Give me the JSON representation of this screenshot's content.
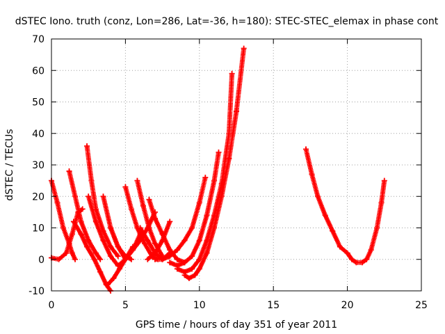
{
  "chart_data": {
    "type": "scatter",
    "title": "dSTEC Iono. truth (conz, Lon=286, Lat=-36, h=180): STEC-STEC_elemax in phase cont",
    "xlabel": "GPS time / hours of day 351 of year 2011",
    "ylabel": "dSTEC  / TECUs",
    "xlim": [
      0,
      25
    ],
    "ylim": [
      -10,
      70
    ],
    "x_ticks": [
      "0",
      "5",
      "10",
      "15",
      "20",
      "25"
    ],
    "y_ticks": [
      "-10",
      "0",
      "10",
      "20",
      "30",
      "40",
      "50",
      "60",
      "70"
    ],
    "grid": true,
    "marker": "+",
    "color": "#ff0000",
    "series": [
      {
        "x": [
          0.0,
          0.4,
          0.8,
          1.2,
          1.4,
          1.6
        ],
        "y": [
          25,
          18,
          10,
          5,
          2,
          0
        ]
      },
      {
        "x": [
          0.0,
          0.5,
          1.0,
          1.4,
          1.8,
          2.1
        ],
        "y": [
          0.5,
          0,
          2,
          8,
          15,
          16
        ]
      },
      {
        "x": [
          1.2,
          1.6,
          2.0,
          2.5,
          3.0,
          3.3
        ],
        "y": [
          28,
          20,
          12,
          6,
          2,
          0
        ]
      },
      {
        "x": [
          1.5,
          2.0,
          2.4,
          2.9,
          3.3,
          3.7,
          4.0
        ],
        "y": [
          12,
          8,
          4,
          0,
          -4,
          -8,
          -10
        ]
      },
      {
        "x": [
          2.4,
          2.7,
          3.0,
          3.5,
          4.0,
          4.5
        ],
        "y": [
          36,
          25,
          16,
          9,
          4,
          1
        ]
      },
      {
        "x": [
          2.5,
          3.0,
          3.5,
          4.0,
          4.5,
          5.0,
          5.5
        ],
        "y": [
          20,
          12,
          6,
          1,
          -2,
          0,
          4
        ]
      },
      {
        "x": [
          3.5,
          4.0,
          4.5,
          5.0,
          5.4
        ],
        "y": [
          20,
          10,
          4,
          1,
          0
        ]
      },
      {
        "x": [
          3.8,
          4.2,
          4.6,
          5.0
        ],
        "y": [
          -8,
          -6,
          -3,
          0
        ]
      },
      {
        "x": [
          4.0,
          4.5,
          5.0,
          5.5,
          6.0
        ],
        "y": [
          10,
          4,
          0,
          3,
          8
        ]
      },
      {
        "x": [
          5.0,
          5.4,
          5.8,
          6.3,
          6.8,
          7.2
        ],
        "y": [
          23,
          16,
          10,
          5,
          1,
          0
        ]
      },
      {
        "x": [
          5.0,
          5.5,
          6.0,
          6.5,
          7.0
        ],
        "y": [
          0,
          3,
          6,
          10,
          15
        ]
      },
      {
        "x": [
          5.8,
          6.2,
          6.6,
          7.0,
          7.5
        ],
        "y": [
          25,
          17,
          10,
          5,
          1
        ]
      },
      {
        "x": [
          6.0,
          6.5,
          7.0,
          7.5,
          8.0
        ],
        "y": [
          10,
          6,
          2,
          0,
          2
        ]
      },
      {
        "x": [
          6.6,
          7.0,
          7.5,
          8.0,
          8.5,
          9.0
        ],
        "y": [
          19,
          13,
          8,
          3,
          0,
          -1
        ]
      },
      {
        "x": [
          6.5,
          7.0,
          7.5,
          8.0
        ],
        "y": [
          0,
          2,
          6,
          12
        ]
      },
      {
        "x": [
          7.0,
          7.5,
          8.0,
          8.5,
          9.0,
          9.5,
          10.0,
          10.4
        ],
        "y": [
          0,
          0,
          1,
          3,
          6,
          10,
          18,
          26
        ]
      },
      {
        "x": [
          8.0,
          8.5,
          9.0,
          9.5,
          10.0,
          10.5,
          11.0,
          11.3
        ],
        "y": [
          -1,
          -2,
          -1,
          1,
          6,
          14,
          25,
          34
        ]
      },
      {
        "x": [
          8.5,
          9.0,
          9.5,
          10.0,
          10.5,
          11.0,
          11.5,
          12.0,
          12.2
        ],
        "y": [
          -3,
          -4,
          -3,
          0,
          6,
          14,
          24,
          40,
          59
        ]
      },
      {
        "x": [
          9.0,
          9.3,
          9.7,
          10.0,
          10.5,
          11.0,
          11.5,
          12.0,
          12.5,
          13.0
        ],
        "y": [
          -5,
          -6,
          -5,
          -3,
          2,
          10,
          20,
          32,
          47,
          67
        ]
      },
      {
        "x": [
          17.2,
          17.6,
          18.0,
          18.5,
          19.0,
          19.5,
          20.0,
          20.3,
          20.6,
          21.0,
          21.3,
          21.6,
          22.0,
          22.3,
          22.5
        ],
        "y": [
          35,
          27,
          20,
          14,
          9,
          4,
          2,
          0,
          -1,
          -1,
          0,
          3,
          10,
          18,
          25
        ]
      }
    ]
  }
}
